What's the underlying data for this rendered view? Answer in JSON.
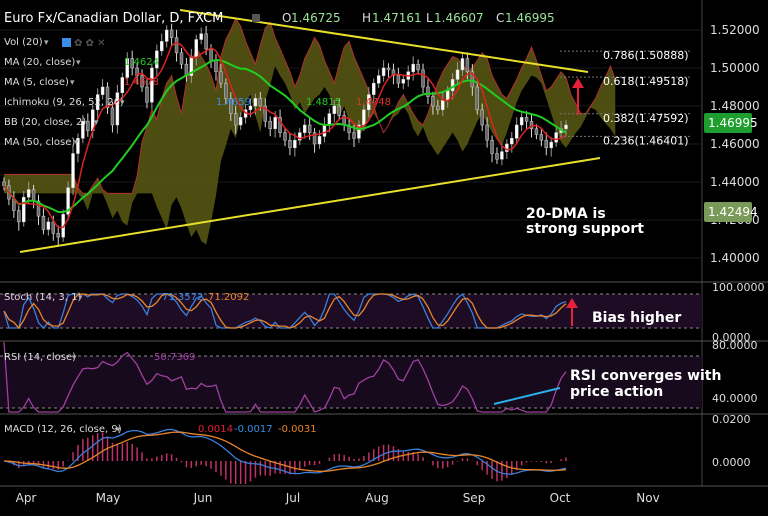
{
  "header": {
    "symbol": "Euro Fx/Canadian Dollar, D, FXCM",
    "ohlc": [
      {
        "label": "O",
        "value": "1.46725"
      },
      {
        "label": "H",
        "value": "1.47161"
      },
      {
        "label": "L",
        "value": "1.46607"
      },
      {
        "label": "C",
        "value": "1.46995"
      }
    ]
  },
  "indicators": [
    {
      "label": "Vol (20)",
      "value": ""
    },
    {
      "label": "MA (20, close)",
      "value": "1.4624"
    },
    {
      "label": "MA (5, close)",
      "value": "1.4678"
    },
    {
      "label": "Ichimoku (9, 26, 52, 26)",
      "values": [
        "1.4659",
        "1.4815",
        "1.4748"
      ]
    },
    {
      "label": "BB (20, close, 2)",
      "value": ""
    },
    {
      "label": "MA (50, close)",
      "value": ""
    }
  ],
  "fib_levels": [
    {
      "label": "0.786(1.50888)",
      "value": 1.50888
    },
    {
      "label": "0.618(1.49518)",
      "value": 1.49518
    },
    {
      "label": "0.382(1.47592)",
      "value": 1.47592
    },
    {
      "label": "0.236(1.46401)",
      "value": 1.46401
    }
  ],
  "annotations": {
    "support_line1": "20-DMA is",
    "support_line2": "strong support",
    "bias": "Bias higher",
    "rsi_line1": "RSI converges with",
    "rsi_line2": "price action"
  },
  "price_axis": {
    "ticks": [
      "1.52000",
      "1.50000",
      "1.48000",
      "1.46000",
      "1.44000",
      "1.42000",
      "1.40000"
    ],
    "current_label": "1.46995",
    "secondary_label": "1.42494"
  },
  "stoch": {
    "label": "Stoch (14, 3, 1)",
    "values": [
      "71.3572",
      "71.2092"
    ],
    "ticks": [
      "100.0000",
      "0.0000"
    ]
  },
  "rsi": {
    "label": "RSI (14, close)",
    "value": "50.7369",
    "ticks": [
      "80.0000",
      "40.0000"
    ]
  },
  "macd": {
    "label": "MACD (12, 26, close, 9)",
    "values": [
      "0.0014",
      "-0.0017",
      "-0.0031"
    ],
    "ticks": [
      "0.0200",
      "0.0000"
    ]
  },
  "time_axis": [
    "Apr",
    "May",
    "Jun",
    "Jul",
    "Aug",
    "Sep",
    "Oct",
    "Nov"
  ],
  "colors": {
    "background": "#000000",
    "ma20": "#22cc22",
    "ma5": "#dd2222",
    "trendline": "#e8e02a",
    "cloud": "#5a5a14",
    "stoch_k": "#3a7fd9",
    "stoch_d": "#e8852a",
    "rsi": "#a040a0",
    "rsi_trend": "#2ab0e8",
    "annotation_arrow": "#e8203a",
    "current_price_bg": "#1e9e2e"
  },
  "chart_data": {
    "type": "candlestick",
    "title": "Euro Fx/Canadian Dollar, D, FXCM",
    "ylim": [
      1.39,
      1.53
    ],
    "yticks": [
      1.52,
      1.5,
      1.48,
      1.46,
      1.44,
      1.42,
      1.4
    ],
    "x": [
      "Apr",
      "May",
      "Jun",
      "Jul",
      "Aug",
      "Sep",
      "Oct",
      "Nov"
    ],
    "close_series": [
      1.438,
      1.431,
      1.425,
      1.419,
      1.432,
      1.436,
      1.43,
      1.422,
      1.415,
      1.419,
      1.413,
      1.411,
      1.423,
      1.437,
      1.455,
      1.463,
      1.472,
      1.467,
      1.478,
      1.486,
      1.49,
      1.479,
      1.47,
      1.487,
      1.495,
      1.505,
      1.5,
      1.496,
      1.49,
      1.482,
      1.5,
      1.509,
      1.514,
      1.52,
      1.516,
      1.508,
      1.502,
      1.496,
      1.506,
      1.515,
      1.518,
      1.51,
      1.504,
      1.498,
      1.492,
      1.484,
      1.476,
      1.47,
      1.474,
      1.478,
      1.48,
      1.484,
      1.48,
      1.472,
      1.468,
      1.474,
      1.466,
      1.462,
      1.458,
      1.462,
      1.466,
      1.47,
      1.466,
      1.46,
      1.464,
      1.47,
      1.476,
      1.48,
      1.475,
      1.47,
      1.466,
      1.463,
      1.47,
      1.478,
      1.486,
      1.492,
      1.496,
      1.5,
      1.499,
      1.496,
      1.492,
      1.494,
      1.498,
      1.502,
      1.499,
      1.49,
      1.485,
      1.48,
      1.478,
      1.483,
      1.488,
      1.494,
      1.499,
      1.505,
      1.498,
      1.49,
      1.478,
      1.47,
      1.462,
      1.455,
      1.452,
      1.456,
      1.46,
      1.463,
      1.47,
      1.474,
      1.472,
      1.468,
      1.465,
      1.462,
      1.458,
      1.461,
      1.466,
      1.468,
      1.47
    ]
  }
}
